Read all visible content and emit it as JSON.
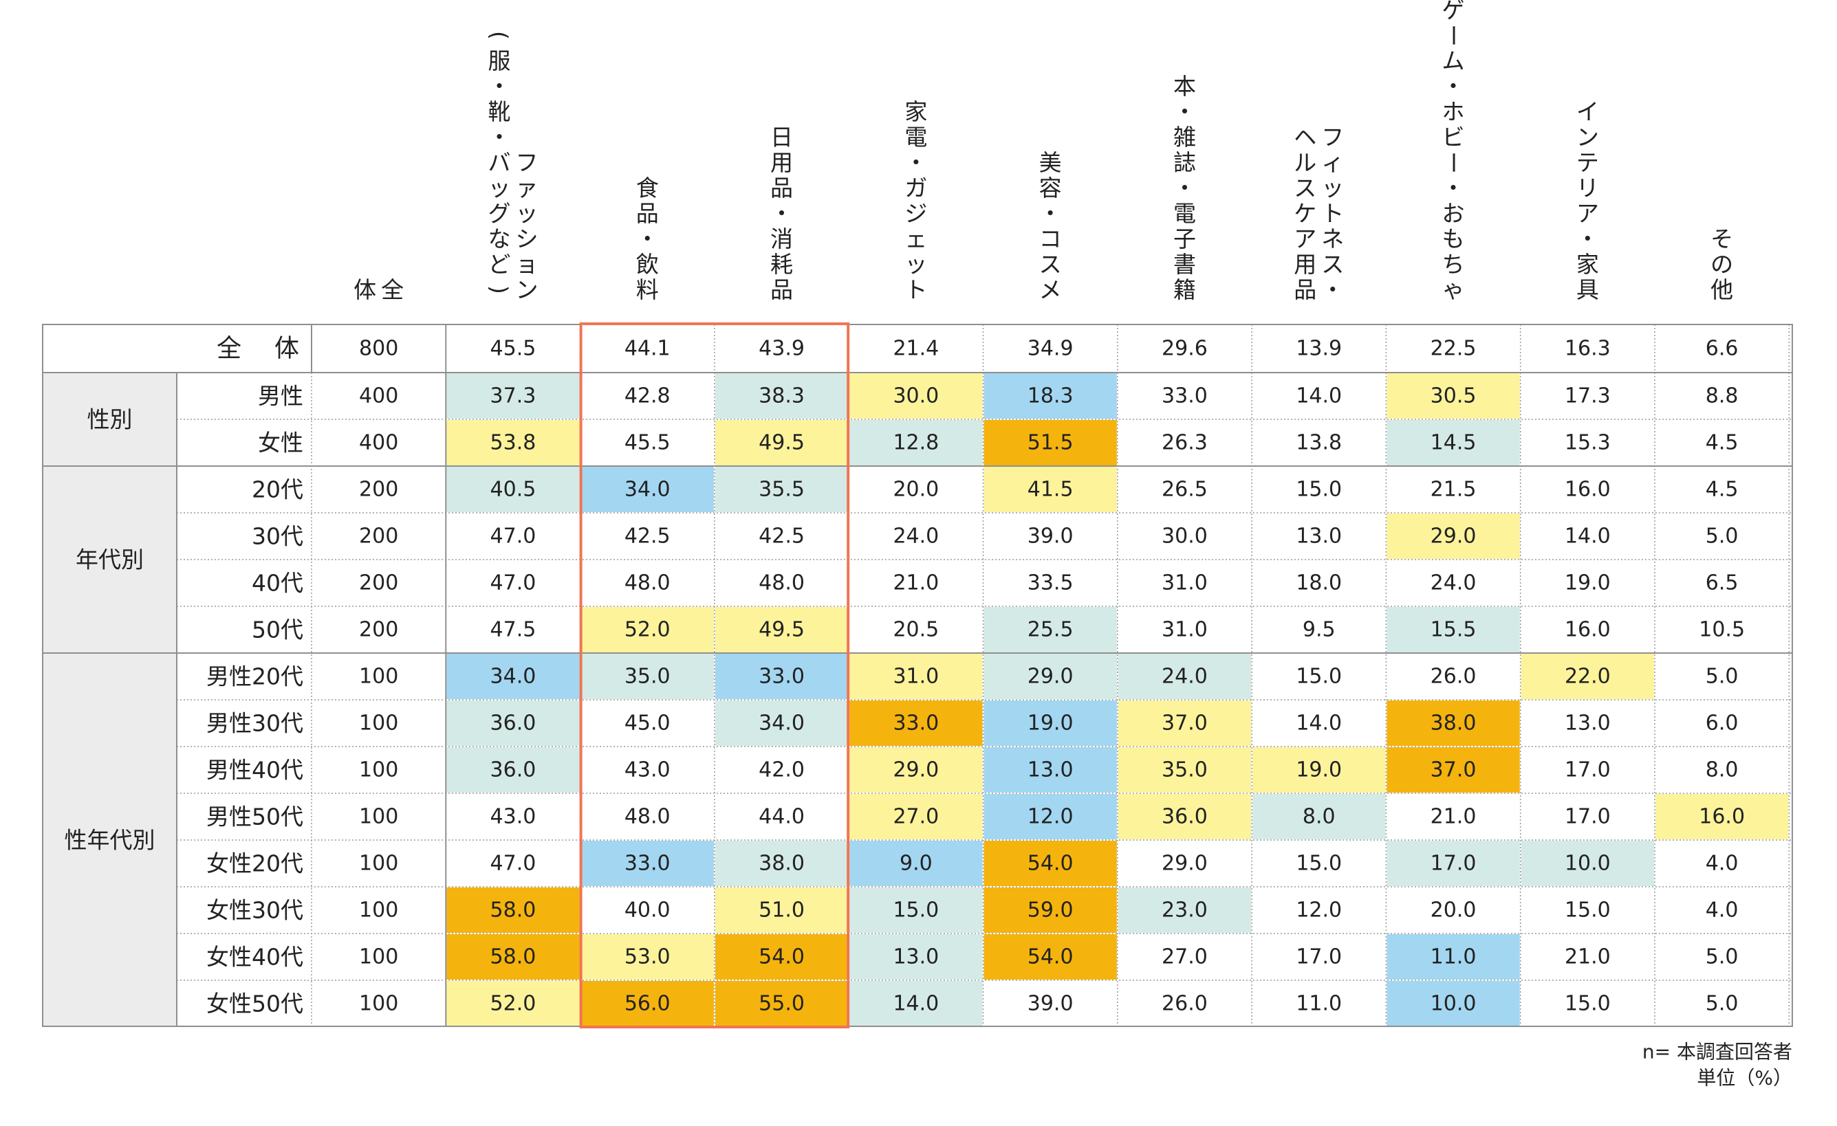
{
  "chart_data": {
    "type": "table",
    "title": "",
    "column_headers": [
      "全体",
      "ファッション(服・靴・バッグなど)",
      "食品・飲料",
      "日用品・消耗品",
      "家電・ガジェット",
      "美容・コスメ",
      "本・雑誌・電子書籍",
      "フィットネス・ヘルスケア用品",
      "ゲーム・ホビー・おもちゃ",
      "インテリア・家具",
      "その他"
    ],
    "column_header_lines": [
      [
        "全",
        "体"
      ],
      [
        "ファッション",
        "(服・靴・バッグなど)"
      ],
      [
        "食品・飲料"
      ],
      [
        "日用品・消耗品"
      ],
      [
        "家電・ガジェット"
      ],
      [
        "美容・コスメ"
      ],
      [
        "本・雑誌・電子書籍"
      ],
      [
        "フィットネス・",
        "ヘルスケア用品"
      ],
      [
        "ゲーム・ホビー・おもちゃ"
      ],
      [
        "インテリア・家具"
      ],
      [
        "その他"
      ]
    ],
    "groups": [
      {
        "label": "",
        "rows": [
          {
            "label": "全　体",
            "n": "800",
            "values": [
              "45.5",
              "44.1",
              "43.9",
              "21.4",
              "34.9",
              "29.6",
              "13.9",
              "22.5",
              "16.3",
              "6.6"
            ],
            "colors": [
              "",
              "",
              "",
              "",
              "",
              "",
              "",
              "",
              "",
              ""
            ]
          }
        ]
      },
      {
        "label": "性別",
        "rows": [
          {
            "label": "男性",
            "n": "400",
            "values": [
              "37.3",
              "42.8",
              "38.3",
              "30.0",
              "18.3",
              "33.0",
              "14.0",
              "30.5",
              "17.3",
              "8.8"
            ],
            "colors": [
              "m",
              "",
              "m",
              "y",
              "b",
              "",
              "",
              "y",
              "",
              ""
            ]
          },
          {
            "label": "女性",
            "n": "400",
            "values": [
              "53.8",
              "45.5",
              "49.5",
              "12.8",
              "51.5",
              "26.3",
              "13.8",
              "14.5",
              "15.3",
              "4.5"
            ],
            "colors": [
              "y",
              "",
              "y",
              "m",
              "o",
              "",
              "",
              "m",
              "",
              ""
            ]
          }
        ]
      },
      {
        "label": "年代別",
        "rows": [
          {
            "label": "20代",
            "n": "200",
            "values": [
              "40.5",
              "34.0",
              "35.5",
              "20.0",
              "41.5",
              "26.5",
              "15.0",
              "21.5",
              "16.0",
              "4.5"
            ],
            "colors": [
              "m",
              "b",
              "m",
              "",
              "y",
              "",
              "",
              "",
              "",
              ""
            ]
          },
          {
            "label": "30代",
            "n": "200",
            "values": [
              "47.0",
              "42.5",
              "42.5",
              "24.0",
              "39.0",
              "30.0",
              "13.0",
              "29.0",
              "14.0",
              "5.0"
            ],
            "colors": [
              "",
              "",
              "",
              "",
              "",
              "",
              "",
              "y",
              "",
              ""
            ]
          },
          {
            "label": "40代",
            "n": "200",
            "values": [
              "47.0",
              "48.0",
              "48.0",
              "21.0",
              "33.5",
              "31.0",
              "18.0",
              "24.0",
              "19.0",
              "6.5"
            ],
            "colors": [
              "",
              "",
              "",
              "",
              "",
              "",
              "",
              "",
              "",
              ""
            ]
          },
          {
            "label": "50代",
            "n": "200",
            "values": [
              "47.5",
              "52.0",
              "49.5",
              "20.5",
              "25.5",
              "31.0",
              "9.5",
              "15.5",
              "16.0",
              "10.5"
            ],
            "colors": [
              "",
              "y",
              "y",
              "",
              "m",
              "",
              "",
              "m",
              "",
              ""
            ]
          }
        ]
      },
      {
        "label": "性年代別",
        "rows": [
          {
            "label": "男性20代",
            "n": "100",
            "values": [
              "34.0",
              "35.0",
              "33.0",
              "31.0",
              "29.0",
              "24.0",
              "15.0",
              "26.0",
              "22.0",
              "5.0"
            ],
            "colors": [
              "b",
              "m",
              "b",
              "y",
              "m",
              "m",
              "",
              "",
              "y",
              ""
            ]
          },
          {
            "label": "男性30代",
            "n": "100",
            "values": [
              "36.0",
              "45.0",
              "34.0",
              "33.0",
              "19.0",
              "37.0",
              "14.0",
              "38.0",
              "13.0",
              "6.0"
            ],
            "colors": [
              "m",
              "",
              "m",
              "o",
              "b",
              "y",
              "",
              "o",
              "",
              ""
            ]
          },
          {
            "label": "男性40代",
            "n": "100",
            "values": [
              "36.0",
              "43.0",
              "42.0",
              "29.0",
              "13.0",
              "35.0",
              "19.0",
              "37.0",
              "17.0",
              "8.0"
            ],
            "colors": [
              "m",
              "",
              "",
              "y",
              "b",
              "y",
              "y",
              "o",
              "",
              ""
            ]
          },
          {
            "label": "男性50代",
            "n": "100",
            "values": [
              "43.0",
              "48.0",
              "44.0",
              "27.0",
              "12.0",
              "36.0",
              "8.0",
              "21.0",
              "17.0",
              "16.0"
            ],
            "colors": [
              "",
              "",
              "",
              "y",
              "b",
              "y",
              "m",
              "",
              "",
              "y"
            ]
          },
          {
            "label": "女性20代",
            "n": "100",
            "values": [
              "47.0",
              "33.0",
              "38.0",
              "9.0",
              "54.0",
              "29.0",
              "15.0",
              "17.0",
              "10.0",
              "4.0"
            ],
            "colors": [
              "",
              "b",
              "m",
              "b",
              "o",
              "",
              "",
              "m",
              "m",
              ""
            ]
          },
          {
            "label": "女性30代",
            "n": "100",
            "values": [
              "58.0",
              "40.0",
              "51.0",
              "15.0",
              "59.0",
              "23.0",
              "12.0",
              "20.0",
              "15.0",
              "4.0"
            ],
            "colors": [
              "o",
              "",
              "y",
              "m",
              "o",
              "m",
              "",
              "",
              "",
              ""
            ]
          },
          {
            "label": "女性40代",
            "n": "100",
            "values": [
              "58.0",
              "53.0",
              "54.0",
              "13.0",
              "54.0",
              "27.0",
              "17.0",
              "11.0",
              "21.0",
              "5.0"
            ],
            "colors": [
              "o",
              "y",
              "o",
              "m",
              "o",
              "",
              "",
              "b",
              "",
              ""
            ]
          },
          {
            "label": "女性50代",
            "n": "100",
            "values": [
              "52.0",
              "56.0",
              "55.0",
              "14.0",
              "39.0",
              "26.0",
              "11.0",
              "10.0",
              "15.0",
              "5.0"
            ],
            "colors": [
              "y",
              "o",
              "o",
              "m",
              "",
              "",
              "",
              "b",
              "",
              ""
            ]
          }
        ]
      }
    ],
    "highlighted_columns": [
      "食品・飲料",
      "日用品・消耗品"
    ],
    "footnote_lines": [
      "n= 本調査回答者",
      "単位（%）"
    ],
    "palette": {
      "o": "#f5b30d",
      "y": "#fcf39b",
      "b": "#a3d6f1",
      "m": "#d4eae6",
      "label_bg": "#ececec",
      "border": "#8f8f8f",
      "highlight": "#f07553"
    }
  }
}
